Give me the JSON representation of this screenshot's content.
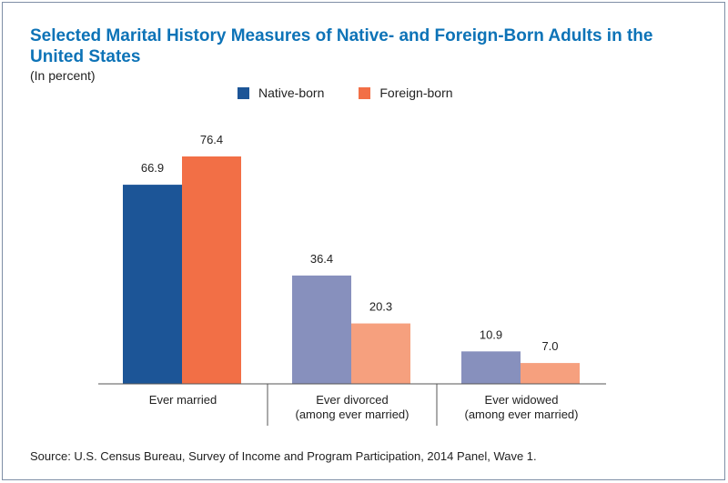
{
  "title": "Selected Marital History Measures of Native- and Foreign-Born Adults in the United States",
  "subtitle": "(In percent)",
  "source": "Source: U.S. Census Bureau, Survey of Income and Program Participation, 2014 Panel, Wave 1.",
  "colors": {
    "title": "#0d73b7",
    "native_primary": "#1c5597",
    "foreign_primary": "#f26f46",
    "native_muted": "#8790bd",
    "foreign_muted": "#f6a07e",
    "axis": "#555555"
  },
  "chart_data": {
    "type": "bar",
    "title": "Selected Marital History Measures of Native- and Foreign-Born Adults in the United States",
    "subtitle": "(In percent)",
    "xlabel": "",
    "ylabel": "",
    "ylim": [
      0,
      80
    ],
    "grid": false,
    "legend_position": "top-center",
    "categories": [
      [
        "Ever married"
      ],
      [
        "Ever divorced",
        "(among ever married)"
      ],
      [
        "Ever widowed",
        "(among ever married)"
      ]
    ],
    "series": [
      {
        "name": "Native-born",
        "values": [
          66.9,
          36.4,
          10.9
        ],
        "labels": [
          "66.9",
          "36.4",
          "10.9"
        ],
        "color": "#1c5597",
        "bar_colors": [
          "#1c5597",
          "#8790bd",
          "#8790bd"
        ]
      },
      {
        "name": "Foreign-born",
        "values": [
          76.4,
          20.3,
          7.0
        ],
        "labels": [
          "76.4",
          "20.3",
          "7.0"
        ],
        "color": "#f26f46",
        "bar_colors": [
          "#f26f46",
          "#f6a07e",
          "#f6a07e"
        ]
      }
    ]
  }
}
